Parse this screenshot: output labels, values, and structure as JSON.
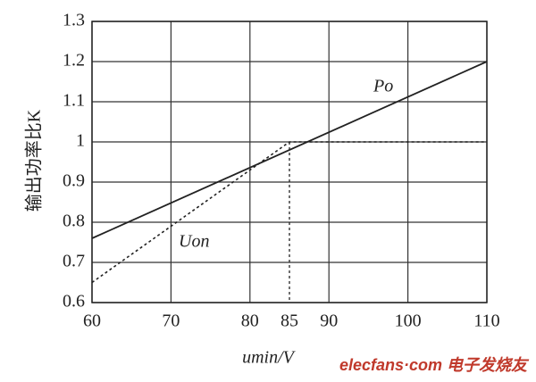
{
  "chart_data": {
    "type": "line",
    "y_label": "输出功率比K",
    "x_label": "umin/V",
    "watermark": "elecfans·com 电子发烧友",
    "xlim": [
      60,
      110
    ],
    "ylim": [
      0.6,
      1.3
    ],
    "xticks": [
      60,
      70,
      80,
      85,
      90,
      100,
      110
    ],
    "yticks": [
      0.6,
      0.7,
      0.8,
      0.9,
      1.0,
      1.1,
      1.2,
      1.3
    ],
    "grid": true,
    "series": [
      {
        "name": "Po",
        "color": "#222222",
        "style": "solid",
        "x": [
          60,
          110
        ],
        "values": [
          0.76,
          1.2
        ]
      },
      {
        "name": "Uon",
        "color": "#222222",
        "style": "dotted",
        "drop_line": true,
        "x": [
          60,
          85,
          110
        ],
        "values": [
          0.65,
          1.0,
          1.0
        ]
      }
    ]
  }
}
